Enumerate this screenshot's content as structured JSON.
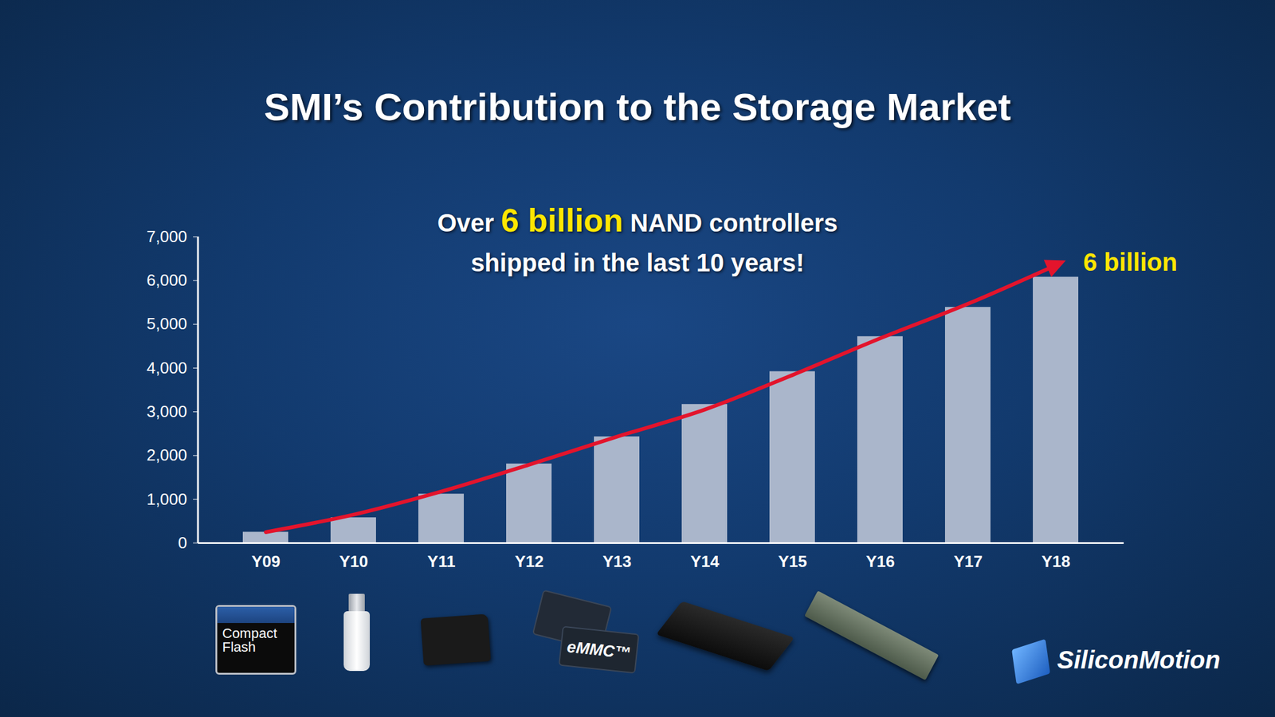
{
  "chart_data": {
    "type": "bar",
    "title": "SMI’s Contribution to the Storage Market",
    "annotation": {
      "lines": [
        [
          {
            "text": "Over "
          },
          {
            "text": "6 billion",
            "color": "#ffe600"
          },
          {
            "text": " NAND controllers"
          }
        ],
        [
          {
            "text": "shipped in the last 10 years!"
          }
        ]
      ]
    },
    "categories": [
      "Y09",
      "Y10",
      "Y11",
      "Y12",
      "Y13",
      "Y14",
      "Y15",
      "Y16",
      "Y17",
      "Y18"
    ],
    "series": [
      {
        "type": "bar",
        "color": "#aab6cb",
        "values": [
          250,
          580,
          1120,
          1810,
          2430,
          3170,
          3920,
          4720,
          5390,
          6080
        ]
      },
      {
        "type": "line",
        "color": "#e3142c",
        "marker": "arrow",
        "values": [
          250,
          650,
          1180,
          1790,
          2430,
          3050,
          3840,
          4680,
          5470,
          6350
        ],
        "end_label": {
          "text": "6 billion",
          "color": "#ffe600"
        }
      }
    ],
    "ylim": [
      0,
      7000
    ],
    "yticks": [
      0,
      {
        "value": 1000,
        "label": "1,000"
      },
      {
        "value": 2000,
        "label": "2,000"
      },
      {
        "value": 3000,
        "label": "3,000"
      },
      {
        "value": 4000,
        "label": "4,000"
      },
      {
        "value": 5000,
        "label": "5,000"
      },
      {
        "value": 6000,
        "label": "6,000"
      },
      {
        "value": 7000,
        "label": "7,000"
      }
    ],
    "grid": false
  },
  "footer": {
    "icon_labels": [
      "Compact Flash",
      "eMMC™"
    ],
    "logo": "SiliconMotion"
  }
}
